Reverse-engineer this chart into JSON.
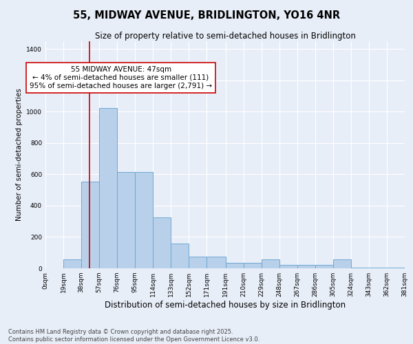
{
  "title": "55, MIDWAY AVENUE, BRIDLINGTON, YO16 4NR",
  "subtitle": "Size of property relative to semi-detached houses in Bridlington",
  "xlabel": "Distribution of semi-detached houses by size in Bridlington",
  "ylabel": "Number of semi-detached properties",
  "bin_edges": [
    0,
    19,
    38,
    57,
    76,
    95,
    114,
    133,
    152,
    171,
    191,
    210,
    229,
    248,
    267,
    286,
    305,
    324,
    343,
    362,
    381
  ],
  "bar_heights": [
    0,
    55,
    555,
    1025,
    615,
    615,
    325,
    160,
    75,
    75,
    35,
    35,
    55,
    20,
    20,
    20,
    55,
    5,
    5,
    5
  ],
  "bar_color": "#b8d0ea",
  "bar_edge_color": "#6fa8d4",
  "bar_linewidth": 0.7,
  "vline_x": 47,
  "vline_color": "#cc0000",
  "vline_linewidth": 1.2,
  "annotation_text": "55 MIDWAY AVENUE: 47sqm\n← 4% of semi-detached houses are smaller (111)\n95% of semi-detached houses are larger (2,791) →",
  "annotation_fontsize": 7.5,
  "annotation_box_color": "#ffffff",
  "annotation_box_edge_color": "#cc0000",
  "ylim": [
    0,
    1450
  ],
  "yticks": [
    0,
    200,
    400,
    600,
    800,
    1000,
    1200,
    1400
  ],
  "title_fontsize": 10.5,
  "subtitle_fontsize": 8.5,
  "xlabel_fontsize": 8.5,
  "ylabel_fontsize": 7.5,
  "tick_fontsize": 6.5,
  "footer_text": "Contains HM Land Registry data © Crown copyright and database right 2025.\nContains public sector information licensed under the Open Government Licence v3.0.",
  "footer_fontsize": 6,
  "background_color": "#e8eef8",
  "plot_bg_color": "#e8eef8",
  "grid_color": "#ffffff",
  "xticklabels": [
    "0sqm",
    "19sqm",
    "38sqm",
    "57sqm",
    "76sqm",
    "95sqm",
    "114sqm",
    "133sqm",
    "152sqm",
    "171sqm",
    "191sqm",
    "210sqm",
    "229sqm",
    "248sqm",
    "267sqm",
    "286sqm",
    "305sqm",
    "324sqm",
    "343sqm",
    "362sqm",
    "381sqm"
  ]
}
